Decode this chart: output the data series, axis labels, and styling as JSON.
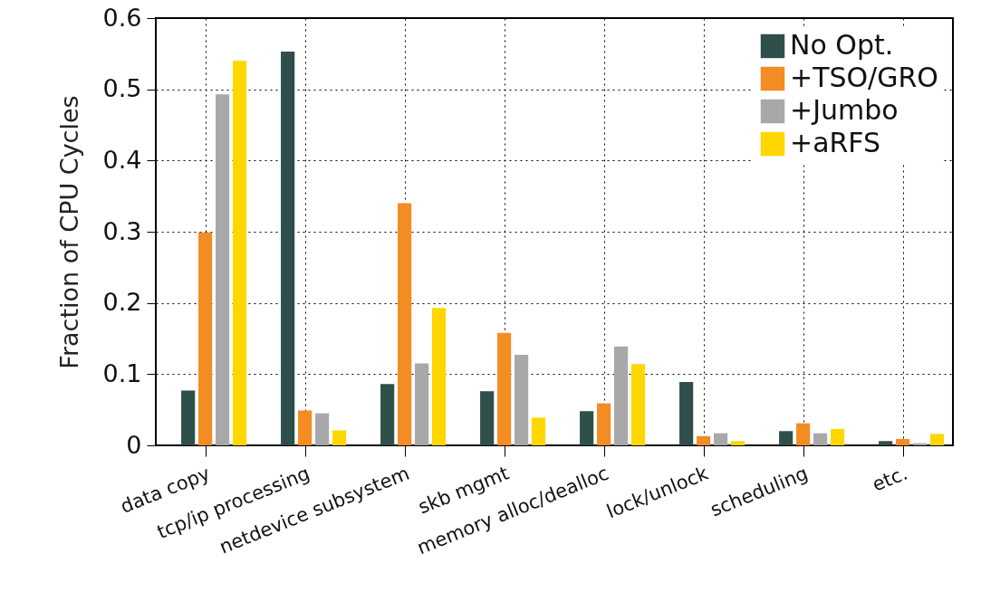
{
  "chart_data": {
    "type": "bar",
    "ylabel": "Fraction of CPU Cycles",
    "categories": [
      "data copy",
      "tcp/ip processing",
      "netdevice subsystem",
      "skb mgmt",
      "memory alloc/dealloc",
      "lock/unlock",
      "scheduling",
      "etc."
    ],
    "series": [
      {
        "name": "No Opt.",
        "color": "#2f4f4b",
        "values": [
          0.077,
          0.553,
          0.086,
          0.076,
          0.048,
          0.089,
          0.02,
          0.006
        ]
      },
      {
        "name": "+TSO/GRO",
        "color": "#f28c23",
        "values": [
          0.299,
          0.049,
          0.34,
          0.158,
          0.059,
          0.013,
          0.031,
          0.009
        ]
      },
      {
        "name": "+Jumbo",
        "color": "#a8a8a8",
        "values": [
          0.493,
          0.045,
          0.115,
          0.127,
          0.139,
          0.017,
          0.017,
          0.003
        ]
      },
      {
        "name": "+aRFS",
        "color": "#ffd700",
        "values": [
          0.54,
          0.021,
          0.193,
          0.039,
          0.114,
          0.006,
          0.023,
          0.016
        ]
      }
    ],
    "ylim": [
      0,
      0.6
    ],
    "yticks": [
      0,
      0.1,
      0.2,
      0.3,
      0.4,
      0.5,
      0.6
    ],
    "grid": true,
    "legend": "top right"
  }
}
